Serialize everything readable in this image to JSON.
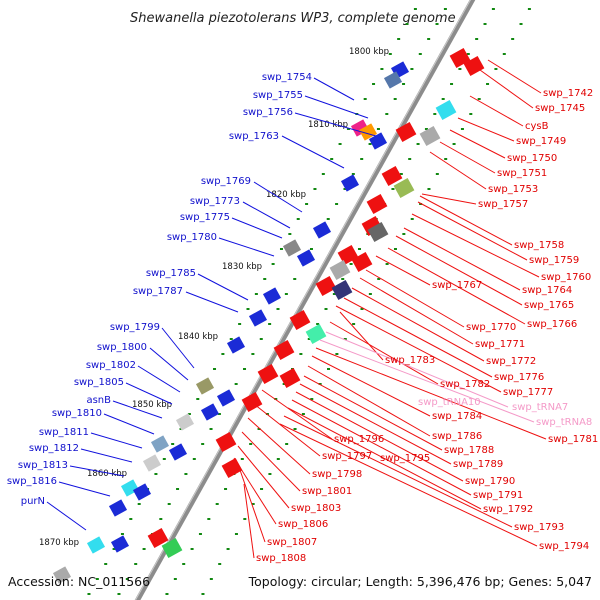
{
  "title": "Shewanella piezotolerans WP3, complete genome",
  "accession": "Accession: NC_011566",
  "topology": "Topology: circular; Length: 5,396,476 bp; Genes: 5,047",
  "colors": {
    "left_label": "#1010cc",
    "right_label": "#e00000",
    "trna_label": "#f49ac8",
    "backbone": "#8c8c8c",
    "tick": "#118811"
  },
  "kbp_markers": [
    "1800 kbp",
    "1810 kbp",
    "1820 kbp",
    "1830 kbp",
    "1840 kbp",
    "1850 kbp",
    "1860 kbp",
    "1870 kbp"
  ],
  "left_labels": [
    "swp_1754",
    "swp_1755",
    "swp_1756",
    "swp_1763",
    "swp_1769",
    "swp_1773",
    "swp_1775",
    "swp_1780",
    "swp_1785",
    "swp_1787",
    "swp_1799",
    "swp_1800",
    "swp_1802",
    "swp_1805",
    "asnB",
    "swp_1810",
    "swp_1811",
    "swp_1812",
    "swp_1813",
    "swp_1816",
    "purN"
  ],
  "right_labels": [
    "swp_1742",
    "swp_1745",
    "cysB",
    "swp_1749",
    "swp_1750",
    "swp_1751",
    "swp_1753",
    "swp_1757",
    "swp_1758",
    "swp_1759",
    "swp_1760",
    "swp_1764",
    "swp_1765",
    "swp_1766",
    "swp_1767",
    "swp_1770",
    "swp_1771",
    "swp_1772",
    "swp_1776",
    "swp_1777",
    "swp_1783",
    "swp_1782",
    "swp_tRNA10",
    "swp_tRNA7",
    "swp_1784",
    "swp_tRNA8",
    "swp_1786",
    "swp_1781",
    "swp_1788",
    "swp_1796",
    "swp_1797",
    "swp_1795",
    "swp_1789",
    "swp_1798",
    "swp_1790",
    "swp_1791",
    "swp_1801",
    "swp_1792",
    "swp_1803",
    "swp_1793",
    "swp_1806",
    "swp_1807",
    "swp_1794",
    "swp_1808"
  ]
}
